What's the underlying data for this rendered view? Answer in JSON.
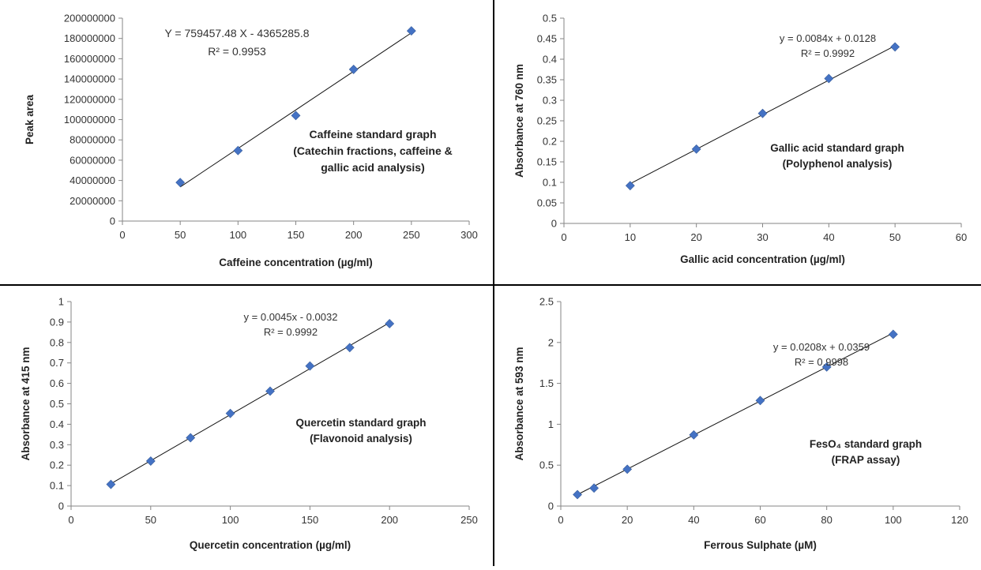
{
  "chart_data": [
    {
      "type": "scatter",
      "xlabel": "Caffeine concentration (µg/ml)",
      "ylabel": "Peak area",
      "xlim": [
        0,
        300
      ],
      "ylim": [
        0,
        200000000
      ],
      "xticks": [
        0,
        50,
        100,
        150,
        200,
        250,
        300
      ],
      "yticks": [
        0,
        20000000,
        40000000,
        60000000,
        80000000,
        100000000,
        120000000,
        140000000,
        160000000,
        180000000,
        200000000
      ],
      "x": [
        50,
        100,
        150,
        200,
        250
      ],
      "y": [
        38000000,
        69500000,
        104000000,
        149500000,
        187500000
      ],
      "trendline": {
        "slope": 759457.48,
        "intercept": -4365285.8,
        "x_range": [
          50,
          250
        ]
      },
      "equation": "Y = 759457.48 X - 4365285.8",
      "r2": "R² = 0.9953",
      "annotation": [
        "Caffeine standard graph",
        "(Catechin fractions, caffeine &",
        "gallic acid  analysis)"
      ],
      "grid": false,
      "marker_color": "#4472C4"
    },
    {
      "type": "scatter",
      "xlabel": "Gallic acid concentration (µg/ml)",
      "ylabel": "Absorbance at 760 nm",
      "xlim": [
        0,
        60
      ],
      "ylim": [
        0,
        0.5
      ],
      "xticks": [
        0,
        10,
        20,
        30,
        40,
        50,
        60
      ],
      "yticks": [
        0,
        0.05,
        0.1,
        0.15,
        0.2,
        0.25,
        0.3,
        0.35,
        0.4,
        0.45,
        0.5
      ],
      "x": [
        10,
        20,
        30,
        40,
        50
      ],
      "y": [
        0.092,
        0.181,
        0.268,
        0.353,
        0.43
      ],
      "trendline": {
        "slope": 0.0084,
        "intercept": 0.0128,
        "x_range": [
          10,
          50
        ]
      },
      "equation": "y = 0.0084x + 0.0128",
      "r2": "R² = 0.9992",
      "annotation": [
        "Gallic acid standard graph",
        "(Polyphenol analysis)"
      ],
      "grid": false,
      "marker_color": "#4472C4"
    },
    {
      "type": "scatter",
      "xlabel": "Quercetin concentration (µg/ml)",
      "ylabel": "Absorbance at 415 nm",
      "xlim": [
        0,
        250
      ],
      "ylim": [
        0,
        1
      ],
      "xticks": [
        0,
        50,
        100,
        150,
        200,
        250
      ],
      "yticks": [
        0,
        0.1,
        0.2,
        0.3,
        0.4,
        0.5,
        0.6,
        0.7,
        0.8,
        0.9,
        1
      ],
      "x": [
        25,
        50,
        75,
        100,
        125,
        150,
        175,
        200
      ],
      "y": [
        0.106,
        0.22,
        0.334,
        0.453,
        0.562,
        0.685,
        0.775,
        0.892
      ],
      "trendline": {
        "slope": 0.0045,
        "intercept": -0.0032,
        "x_range": [
          25,
          200
        ]
      },
      "equation": "y = 0.0045x - 0.0032",
      "r2": "R² = 0.9992",
      "annotation": [
        "Quercetin standard graph",
        "(Flavonoid analysis)"
      ],
      "grid": false,
      "marker_color": "#4472C4"
    },
    {
      "type": "scatter",
      "xlabel": "Ferrous Sulphate (µM)",
      "ylabel": "Absorbance at 593 nm",
      "xlim": [
        0,
        120
      ],
      "ylim": [
        0,
        2.5
      ],
      "xticks": [
        0,
        20,
        40,
        60,
        80,
        100,
        120
      ],
      "yticks": [
        0,
        0.5,
        1,
        1.5,
        2,
        2.5
      ],
      "x": [
        5,
        10,
        20,
        40,
        60,
        80,
        100
      ],
      "y": [
        0.14,
        0.22,
        0.45,
        0.87,
        1.29,
        1.7,
        2.1
      ],
      "trendline": {
        "slope": 0.0208,
        "intercept": 0.0359,
        "x_range": [
          5,
          100
        ]
      },
      "equation": "y = 0.0208x + 0.0359",
      "r2": "R² = 0.9998",
      "annotation": [
        "FesO₄ standard graph",
        "(FRAP assay)"
      ],
      "grid": false,
      "marker_color": "#4472C4"
    }
  ]
}
